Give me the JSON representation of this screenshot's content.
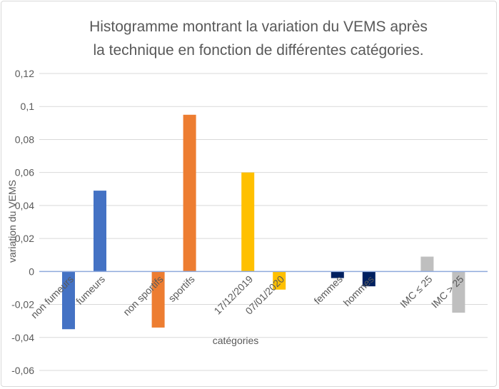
{
  "chart_data": {
    "type": "bar",
    "title_lines": [
      "Histogramme montrant la variation du VEMS après",
      "la technique en fonction de différentes catégories."
    ],
    "xlabel": "catégories",
    "ylabel": "variation du VEMS",
    "ylim": [
      -0.06,
      0.12
    ],
    "yticks": [
      -0.06,
      -0.04,
      -0.02,
      0,
      0.02,
      0.04,
      0.06,
      0.08,
      0.1,
      0.12
    ],
    "ytick_labels": [
      "-0,06",
      "-0,04",
      "-0,02",
      "0",
      "0,02",
      "0,04",
      "0,06",
      "0,08",
      "0,1",
      "0,12"
    ],
    "grid": true,
    "legend": "none",
    "groups": [
      {
        "color": "#4472C4",
        "bars": [
          {
            "label": "non fumeurs",
            "value": -0.035
          },
          {
            "label": "fumeurs",
            "value": 0.049
          }
        ]
      },
      {
        "color": "#ED7D31",
        "bars": [
          {
            "label": "non sportifs",
            "value": -0.034
          },
          {
            "label": "sportifs",
            "value": 0.095
          }
        ]
      },
      {
        "color": "#FFC000",
        "bars": [
          {
            "label": "17/12/2019",
            "value": 0.06
          },
          {
            "label": "07/01/2020",
            "value": -0.011
          }
        ]
      },
      {
        "color": "#002060",
        "bars": [
          {
            "label": "femmes",
            "value": -0.004
          },
          {
            "label": "hommes",
            "value": -0.009
          }
        ]
      },
      {
        "color": "#BFBFBF",
        "bars": [
          {
            "label": "IMC ≤ 25",
            "value": 0.009
          },
          {
            "label": "IMC > 25",
            "value": -0.025
          }
        ]
      }
    ]
  }
}
